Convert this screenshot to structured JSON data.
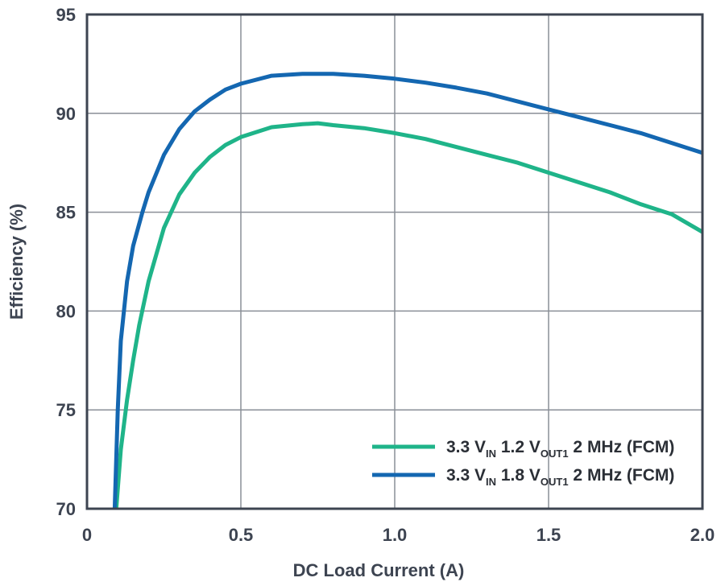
{
  "chart_data": {
    "type": "line",
    "title": "",
    "xlabel": "DC Load Current (A)",
    "ylabel": "Efficiency (%)",
    "xlim": [
      0,
      2.0
    ],
    "ylim": [
      70,
      95
    ],
    "xticks": [
      0,
      0.5,
      1.0,
      1.5,
      2.0
    ],
    "xtick_labels": [
      "0",
      "0.5",
      "1.0",
      "1.5",
      "2.0"
    ],
    "yticks": [
      70,
      75,
      80,
      85,
      90,
      95
    ],
    "ytick_labels": [
      "70",
      "75",
      "80",
      "85",
      "90",
      "95"
    ],
    "grid": true,
    "legend_position": "bottom-right",
    "series": [
      {
        "name": "3.3 VIN 1.2 VOUT1 2 MHz (FCM)",
        "legend": {
          "main1": "3.3 V",
          "sub1": "IN",
          "main2": " 1.2 V",
          "sub2": "OUT1",
          "main3": " 2 MHz (FCM)"
        },
        "color": "#1fb489",
        "x": [
          0.095,
          0.11,
          0.13,
          0.15,
          0.17,
          0.2,
          0.25,
          0.3,
          0.35,
          0.4,
          0.45,
          0.5,
          0.6,
          0.7,
          0.75,
          0.8,
          0.9,
          1.0,
          1.1,
          1.2,
          1.3,
          1.4,
          1.5,
          1.6,
          1.7,
          1.8,
          1.9,
          2.0
        ],
        "y": [
          70.0,
          73.0,
          75.5,
          77.5,
          79.3,
          81.5,
          84.2,
          85.9,
          87.0,
          87.8,
          88.4,
          88.8,
          89.3,
          89.45,
          89.5,
          89.4,
          89.25,
          89.0,
          88.7,
          88.3,
          87.9,
          87.5,
          87.0,
          86.5,
          86.0,
          85.4,
          84.9,
          84.0
        ]
      },
      {
        "name": "3.3 VIN 1.8 VOUT1 2 MHz (FCM)",
        "legend": {
          "main1": "3.3 V",
          "sub1": "IN",
          "main2": " 1.8 V",
          "sub2": "OUT1",
          "main3": " 2 MHz (FCM)"
        },
        "color": "#1467b1",
        "x": [
          0.09,
          0.1,
          0.11,
          0.13,
          0.15,
          0.18,
          0.2,
          0.25,
          0.3,
          0.35,
          0.4,
          0.45,
          0.5,
          0.6,
          0.7,
          0.8,
          0.9,
          1.0,
          1.1,
          1.2,
          1.3,
          1.4,
          1.5,
          1.6,
          1.7,
          1.8,
          1.9,
          2.0
        ],
        "y": [
          70.0,
          75.0,
          78.5,
          81.5,
          83.3,
          85.0,
          86.0,
          87.9,
          89.2,
          90.1,
          90.7,
          91.2,
          91.5,
          91.9,
          92.0,
          92.0,
          91.9,
          91.75,
          91.55,
          91.3,
          91.0,
          90.6,
          90.2,
          89.8,
          89.4,
          89.0,
          88.5,
          88.0
        ]
      }
    ]
  }
}
